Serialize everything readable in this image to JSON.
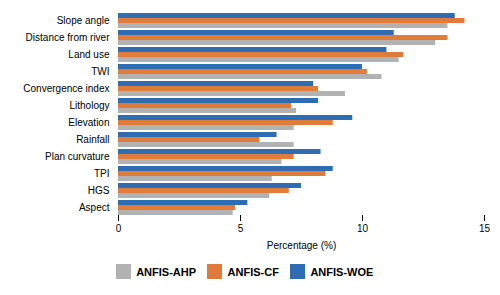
{
  "chart_data": {
    "type": "bar",
    "orientation": "horizontal",
    "categories": [
      "Slope angle",
      "Distance from river",
      "Land use",
      "TWI",
      "Convergence index",
      "Lithology",
      "Elevation",
      "Rainfall",
      "Plan curvature",
      "TPI",
      "HGS",
      "Aspect"
    ],
    "series": [
      {
        "name": "ANFIS-AHP",
        "color": "#b2b2b2",
        "values": [
          13.5,
          13.0,
          11.5,
          10.8,
          9.3,
          7.3,
          7.2,
          7.2,
          6.7,
          6.3,
          6.2,
          4.7
        ]
      },
      {
        "name": "ANFIS-CF",
        "color": "#e07b39",
        "values": [
          14.2,
          13.5,
          11.7,
          10.2,
          8.2,
          7.1,
          8.8,
          5.8,
          7.2,
          8.5,
          7.0,
          4.8
        ]
      },
      {
        "name": "ANFIS-WOE",
        "color": "#2e6db4",
        "values": [
          13.8,
          11.3,
          11.0,
          10.0,
          8.0,
          8.2,
          9.6,
          6.5,
          8.3,
          8.8,
          7.5,
          5.3
        ]
      }
    ],
    "xlabel": "Percentage (%)",
    "xlim": [
      0,
      15
    ],
    "xticks": [
      0,
      5,
      10,
      15
    ],
    "grid": false,
    "legend": "bottom"
  }
}
